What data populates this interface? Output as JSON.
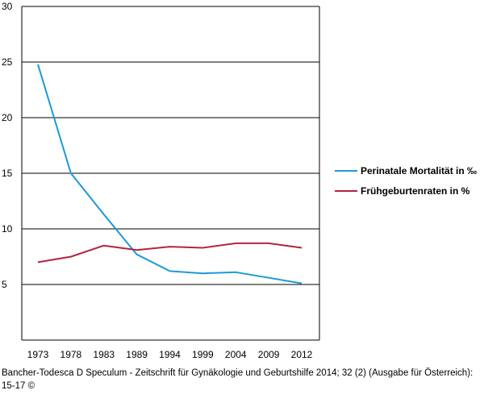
{
  "chart_data": {
    "type": "line",
    "title": "",
    "xlabel": "",
    "ylabel": "",
    "categories": [
      "1973",
      "1978",
      "1983",
      "1989",
      "1994",
      "1999",
      "2004",
      "2009",
      "2012"
    ],
    "ylim": [
      0,
      30
    ],
    "yticks": [
      5,
      10,
      15,
      20,
      25,
      30
    ],
    "grid": true,
    "legend_position": "right",
    "series": [
      {
        "name": "Perinatale Mortalität in ‰",
        "color": "#1a9ad6",
        "values": [
          24.8,
          15.0,
          11.3,
          7.7,
          6.2,
          6.0,
          6.1,
          5.6,
          5.1
        ]
      },
      {
        "name": "Frühgeburtenraten in %",
        "color": "#b5243c",
        "values": [
          7.0,
          7.5,
          8.5,
          8.1,
          8.4,
          8.3,
          8.7,
          8.7,
          8.3
        ]
      }
    ]
  },
  "caption": "Bancher-Todesca D Speculum - Zeitschrift für Gynäkologie und Geburtshilfe 2014; 32 (2) (Ausgabe für Österreich): 15-17 ©"
}
